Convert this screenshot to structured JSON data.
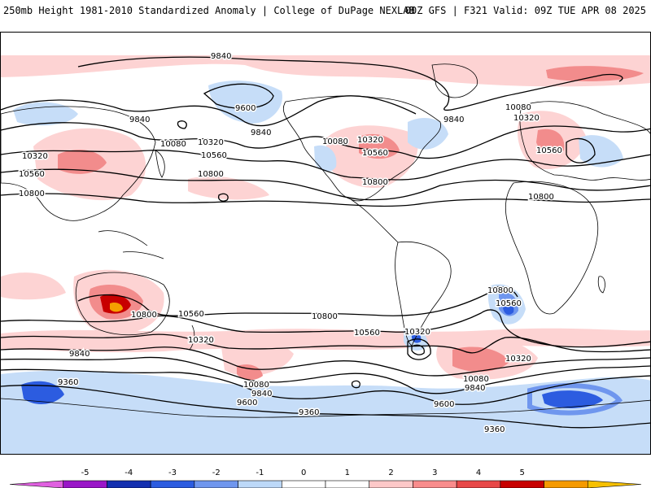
{
  "header": {
    "title": "250mb Height 1981-2010 Standardized Anomaly | College of DuPage NEXLAB",
    "run_info": "00Z GFS | F321 Valid: 09Z TUE APR 08 2025"
  },
  "map": {
    "contour_labels": [
      {
        "id": "nh-9840-top",
        "text": "9840"
      },
      {
        "id": "nh-9600-npac",
        "text": "9600"
      },
      {
        "id": "nh-9840-npac-w",
        "text": "9840"
      },
      {
        "id": "nh-9840-npac-e",
        "text": "9840"
      },
      {
        "id": "nh-10080-asia",
        "text": "10080"
      },
      {
        "id": "nh-10320-pac",
        "text": "10320"
      },
      {
        "id": "nh-10560-pac",
        "text": "10560"
      },
      {
        "id": "nh-10800-pac",
        "text": "10800"
      },
      {
        "id": "nh-10320-asia",
        "text": "10320"
      },
      {
        "id": "nh-10560-asia",
        "text": "10560"
      },
      {
        "id": "nh-10800-asia",
        "text": "10800"
      },
      {
        "id": "nh-10080-na",
        "text": "10080"
      },
      {
        "id": "nh-10320-na",
        "text": "10320"
      },
      {
        "id": "nh-10560-na",
        "text": "10560"
      },
      {
        "id": "nh-10800-na",
        "text": "10800"
      },
      {
        "id": "nh-9840-atl",
        "text": "9840"
      },
      {
        "id": "nh-10080-eu",
        "text": "10080"
      },
      {
        "id": "nh-10320-eu",
        "text": "10320"
      },
      {
        "id": "nh-10560-eu",
        "text": "10560"
      },
      {
        "id": "nh-10800-af",
        "text": "10800"
      },
      {
        "id": "sh-10800-aus",
        "text": "10800"
      },
      {
        "id": "sh-10560-aus",
        "text": "10560"
      },
      {
        "id": "sh-10320-aus",
        "text": "10320"
      },
      {
        "id": "sh-10800-pac",
        "text": "10800"
      },
      {
        "id": "sh-10560-pac",
        "text": "10560"
      },
      {
        "id": "sh-10320-sam",
        "text": "10320"
      },
      {
        "id": "sh-10800-satl",
        "text": "10800"
      },
      {
        "id": "sh-10560-satl",
        "text": "10560"
      },
      {
        "id": "sh-10320-satl",
        "text": "10320"
      },
      {
        "id": "sh-9840-w",
        "text": "9840"
      },
      {
        "id": "sh-9360-w",
        "text": "9360"
      },
      {
        "id": "sh-10080-pac",
        "text": "10080"
      },
      {
        "id": "sh-9840-pac",
        "text": "9840"
      },
      {
        "id": "sh-9600-pac",
        "text": "9600"
      },
      {
        "id": "sh-9360-pac",
        "text": "9360"
      },
      {
        "id": "sh-10080-atl",
        "text": "10080"
      },
      {
        "id": "sh-9840-atl",
        "text": "9840"
      },
      {
        "id": "sh-9600-atl",
        "text": "9600"
      },
      {
        "id": "sh-9360-e",
        "text": "9360"
      }
    ]
  },
  "colorbar": {
    "ticks": [
      "-5",
      "-4",
      "-3",
      "-2",
      "-1",
      "0",
      "1",
      "2",
      "3",
      "4",
      "5"
    ],
    "colors": [
      "#e060e0",
      "#9a16c8",
      "#1430b0",
      "#2c5ce0",
      "#6f96ee",
      "#bcd8f8",
      "#ffffff",
      "#ffffff",
      "#fdc8c8",
      "#f98c8c",
      "#e84848",
      "#c80000",
      "#f59a00",
      "#f6c000"
    ]
  }
}
